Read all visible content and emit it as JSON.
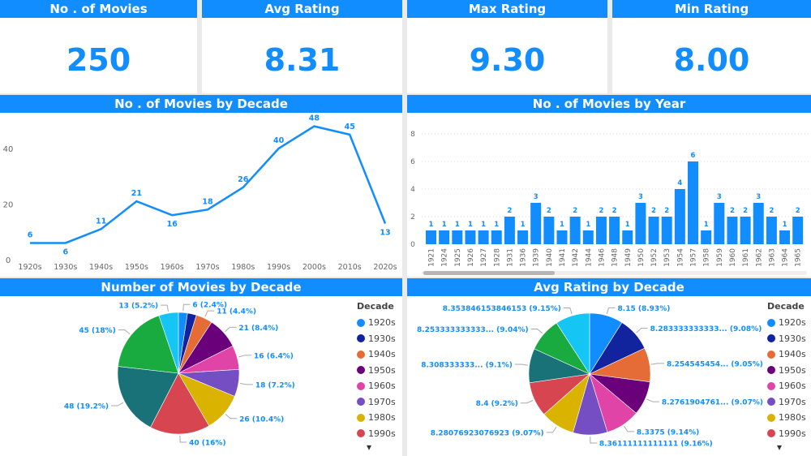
{
  "kpis": [
    {
      "title": "No . of Movies",
      "value": "250"
    },
    {
      "title": "Avg Rating",
      "value": "8.31"
    },
    {
      "title": "Max Rating",
      "value": "9.30"
    },
    {
      "title": "Min Rating",
      "value": "8.00"
    }
  ],
  "colors": {
    "accent": "#118DFF",
    "decades": [
      "#118DFF",
      "#12239E",
      "#E66C37",
      "#6B007B",
      "#E044A7",
      "#744EC2",
      "#D9B300",
      "#D64550",
      "#197278",
      "#1AAB40",
      "#15C6F4"
    ]
  },
  "chart_data": [
    {
      "type": "line",
      "title": "No . of Movies by Decade",
      "categories": [
        "1920s",
        "1930s",
        "1940s",
        "1950s",
        "1960s",
        "1970s",
        "1980s",
        "1990s",
        "2000s",
        "2010s",
        "2020s"
      ],
      "values": [
        6,
        6,
        11,
        21,
        16,
        18,
        26,
        40,
        48,
        45,
        13
      ],
      "yticks": [
        "0",
        "20",
        "40"
      ],
      "ylim": [
        0,
        50
      ]
    },
    {
      "type": "bar",
      "title": "No . of Movies by Year",
      "categories": [
        "1921",
        "1924",
        "1925",
        "1926",
        "1927",
        "1928",
        "1931",
        "1936",
        "1939",
        "1940",
        "1941",
        "1942",
        "1944",
        "1946",
        "1948",
        "1949",
        "1950",
        "1952",
        "1953",
        "1954",
        "1957",
        "1958",
        "1959",
        "1960",
        "1961",
        "1962",
        "1963",
        "1964",
        "1965"
      ],
      "values": [
        1,
        1,
        1,
        1,
        1,
        1,
        2,
        1,
        3,
        2,
        1,
        2,
        1,
        2,
        2,
        1,
        3,
        2,
        2,
        4,
        6,
        1,
        3,
        2,
        2,
        3,
        2,
        1,
        2
      ],
      "yticks": [
        "0",
        "2",
        "4",
        "6",
        "8"
      ],
      "ylim": [
        0,
        8
      ]
    },
    {
      "type": "pie",
      "title": "Number of Movies by Decade",
      "legend_title": "Decade",
      "categories": [
        "1920s",
        "1930s",
        "1940s",
        "1950s",
        "1960s",
        "1970s",
        "1980s",
        "1990s",
        "2000s",
        "2010s",
        "2020s"
      ],
      "values": [
        6,
        6,
        11,
        21,
        16,
        18,
        26,
        40,
        48,
        45,
        13
      ],
      "labels": [
        "6 (2.4%)",
        "",
        "11 (4.4%)",
        "21 (8.4%)",
        "16 (6.4%)",
        "18 (7.2%)",
        "26 (10.4%)",
        "40 (16%)",
        "48 (19.2%)",
        "45 (18%)",
        "13 (5.2%)"
      ],
      "legend_visible": [
        "1920s",
        "1930s",
        "1940s",
        "1950s",
        "1960s",
        "1970s",
        "1980s",
        "1990s"
      ]
    },
    {
      "type": "pie",
      "title": "Avg Rating by Decade",
      "legend_title": "Decade",
      "categories": [
        "1920s",
        "1930s",
        "1940s",
        "1950s",
        "1960s",
        "1970s",
        "1980s",
        "1990s",
        "2000s",
        "2010s",
        "2020s"
      ],
      "values": [
        8.15,
        8.2833,
        8.2545,
        8.2762,
        8.3375,
        8.3611,
        8.2808,
        8.4,
        8.3083,
        8.2533,
        8.3538
      ],
      "labels": [
        "8.15 (8.93%)",
        "8.283333333333... (9.08%)",
        "8.254545454... (9.05%)",
        "8.2761904761... (9.07%)",
        "8.3375 (9.14%)",
        "8.36111111111111 (9.16%)",
        "8.28076923076923 (9.07%)",
        "8.4 (9.2%)",
        "8.308333333... (9.1%)",
        "8.253333333333... (9.04%)",
        "8.353846153846153 (9.15%)"
      ],
      "legend_visible": [
        "1920s",
        "1930s",
        "1940s",
        "1950s",
        "1960s",
        "1970s",
        "1980s",
        "1990s"
      ]
    }
  ]
}
